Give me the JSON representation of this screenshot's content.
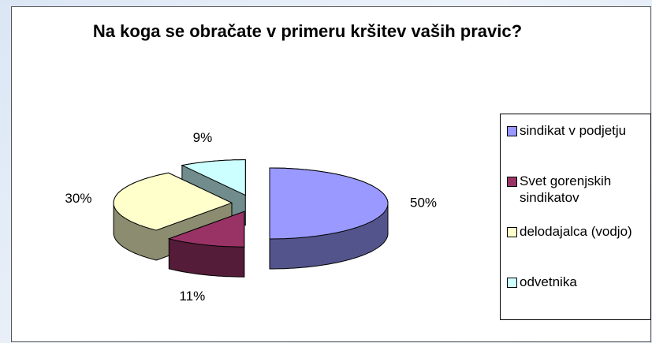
{
  "chart_data": {
    "type": "pie",
    "title": "Na koga se obračate v primeru kršitev vaših pravic?",
    "categories": [
      "sindikat v podjetju",
      "Svet gorenjskih sindikatov",
      "delodajalca (vodjo)",
      "odvetnika"
    ],
    "values": [
      50,
      11,
      30,
      9
    ],
    "value_labels": [
      "50%",
      "11%",
      "30%",
      "9%"
    ],
    "colors": [
      "#9999ff",
      "#993366",
      "#ffffcc",
      "#ccffff"
    ],
    "legend": "right"
  }
}
